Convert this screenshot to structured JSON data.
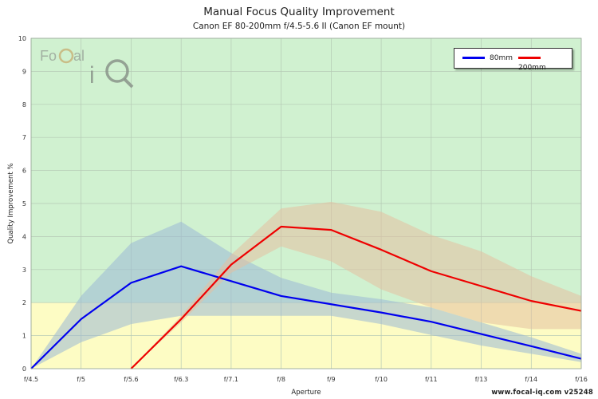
{
  "header": {
    "title": "Manual Focus Quality Improvement",
    "subtitle": "Canon EF 80-200mm f/4.5-5.6 II (Canon EF mount)"
  },
  "footer": {
    "watermark": "www.focal-iq.com  v25248"
  },
  "logo": {
    "line1": "FoCal",
    "line2": "iQ"
  },
  "chart_data": {
    "type": "line",
    "x_categories": [
      "f/4.5",
      "f/5",
      "f/5.6",
      "f/6.3",
      "f/7.1",
      "f/8",
      "f/9",
      "f/10",
      "f/11",
      "f/13",
      "f/14",
      "f/16"
    ],
    "ylabel": "Quality Improvement %",
    "xlabel": "Aperture",
    "ylim": [
      0,
      10
    ],
    "y_ticks": [
      "0",
      "1",
      "2",
      "3",
      "4",
      "5",
      "6",
      "7",
      "8",
      "9",
      "10"
    ],
    "grid": true,
    "legend_position": "top-right",
    "background_bands": [
      {
        "from": 0,
        "to": 2,
        "color": "#fdfcc4"
      },
      {
        "from": 2,
        "to": 10,
        "color": "#d0f1d0"
      }
    ],
    "series": [
      {
        "name": "80mm",
        "color": "#0000ee",
        "band_color": "#9ab8d6",
        "values": [
          0,
          1.5,
          2.6,
          3.1,
          2.65,
          2.2,
          1.95,
          1.7,
          1.42,
          1.05,
          0.68,
          0.3
        ],
        "band_upper": [
          0,
          2.2,
          3.8,
          4.45,
          3.5,
          2.75,
          2.3,
          2.1,
          1.85,
          1.4,
          0.95,
          0.45
        ],
        "band_lower": [
          0,
          0.8,
          1.35,
          1.6,
          1.6,
          1.6,
          1.6,
          1.35,
          1.02,
          0.7,
          0.45,
          0.2
        ]
      },
      {
        "name": "200mm",
        "color": "#ee0000",
        "band_color": "#e3c0a0",
        "start_index": 2,
        "values": [
          null,
          null,
          0,
          1.5,
          3.15,
          4.3,
          4.2,
          3.6,
          2.95,
          2.5,
          2.05,
          1.75
        ],
        "band_upper": [
          null,
          null,
          0,
          1.6,
          3.45,
          4.85,
          5.05,
          4.75,
          4.05,
          3.55,
          2.8,
          2.2
        ],
        "band_lower": [
          null,
          null,
          0,
          1.4,
          2.9,
          3.7,
          3.25,
          2.4,
          1.85,
          1.4,
          1.2,
          1.2
        ]
      }
    ]
  }
}
